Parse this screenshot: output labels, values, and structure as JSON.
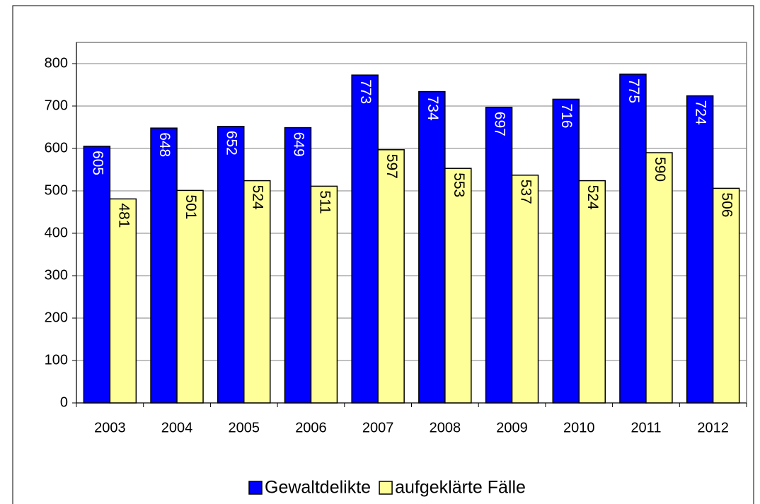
{
  "chart_data": {
    "type": "bar",
    "categories": [
      "2003",
      "2004",
      "2005",
      "2006",
      "2007",
      "2008",
      "2009",
      "2010",
      "2011",
      "2012"
    ],
    "series": [
      {
        "name": "Gewaltdelikte",
        "color": "#0000ff",
        "label_color": "#ffffff",
        "values": [
          605,
          648,
          652,
          649,
          773,
          734,
          697,
          716,
          775,
          724
        ]
      },
      {
        "name": "aufgeklärte Fälle",
        "color": "#ffff99",
        "label_color": "#000000",
        "values": [
          481,
          501,
          524,
          511,
          597,
          553,
          537,
          524,
          590,
          506
        ]
      }
    ],
    "ylim": [
      0,
      800
    ],
    "yticks": [
      0,
      100,
      200,
      300,
      400,
      500,
      600,
      700,
      800
    ],
    "grid": true,
    "legend": "bottom"
  }
}
